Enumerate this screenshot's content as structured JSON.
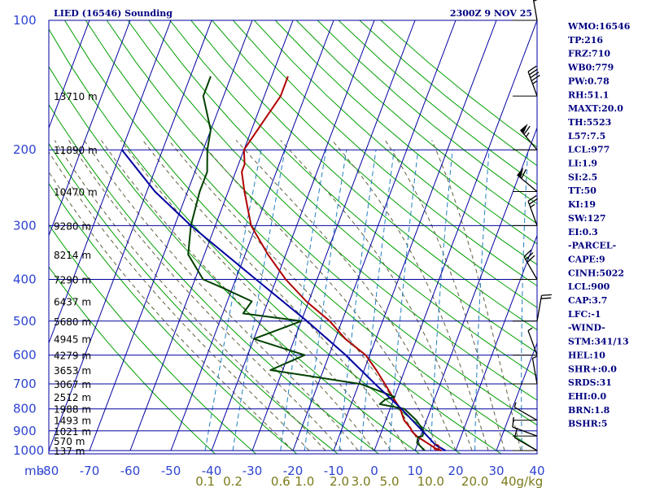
{
  "header": {
    "title": "LIED (16546) Sounding",
    "time": "2300Z  9 NOV 25"
  },
  "indices": [
    "WMO:16546",
    "TP:216",
    "FRZ:710",
    "WB0:779",
    "PW:0.78",
    "RH:51.1",
    "MAXT:20.0",
    "TH:5523",
    "L57:7.5",
    "LCL:977",
    "LI:1.9",
    "SI:2.5",
    "TT:50",
    "KI:19",
    "SW:127",
    "EI:0.3",
    "-PARCEL-",
    "CAPE:9",
    "CINH:5022",
    "LCL:900",
    "CAP:3.7",
    "LFC:-1",
    "-WIND-",
    "STM:341/13",
    "HEL:10",
    "SHR+:0.0",
    "SRDS:31",
    "EHI:0.0",
    "BRN:1.8",
    "BSHR:5"
  ],
  "chart_data": {
    "type": "line",
    "title": "LIED (16546) Sounding",
    "xlabel": "",
    "ylabel": "mb",
    "pressure_ticks": [
      100,
      200,
      300,
      400,
      500,
      600,
      700,
      800,
      900,
      1000
    ],
    "temperature_ticks": [
      "-80",
      "-70",
      "-60",
      "-50",
      "-40",
      "-30",
      "-20",
      "-10",
      "0",
      "10",
      "20",
      "30",
      "40"
    ],
    "mixing_ratio_ticks": [
      "0.1",
      "0.2",
      "0.6",
      "1.0",
      "2.0",
      "3.0",
      "5.0",
      "10.0",
      "20.0",
      "40g/kg"
    ],
    "height_labels": [
      {
        "p": 150,
        "text": "13710 m"
      },
      {
        "p": 200,
        "text": "11890 m"
      },
      {
        "p": 250,
        "text": "10470 m"
      },
      {
        "p": 300,
        "text": "9280 m"
      },
      {
        "p": 350,
        "text": "8214 m"
      },
      {
        "p": 400,
        "text": "7290 m"
      },
      {
        "p": 450,
        "text": "6437 m"
      },
      {
        "p": 500,
        "text": "5680 m"
      },
      {
        "p": 550,
        "text": "4945 m"
      },
      {
        "p": 600,
        "text": "4279 m"
      },
      {
        "p": 650,
        "text": "3653 m"
      },
      {
        "p": 700,
        "text": "3067 m"
      },
      {
        "p": 750,
        "text": "2512 m"
      },
      {
        "p": 800,
        "text": "1988 m"
      },
      {
        "p": 850,
        "text": "1493 m"
      },
      {
        "p": 900,
        "text": "1021 m"
      },
      {
        "p": 950,
        "text": "570 m"
      },
      {
        "p": 1000,
        "text": "137 m"
      }
    ],
    "series": [
      {
        "name": "temperature",
        "color": "#b00000",
        "points": [
          [
            1000,
            16.5
          ],
          [
            990,
            15.0
          ],
          [
            925,
            9.0
          ],
          [
            900,
            7.3
          ],
          [
            890,
            7.0
          ],
          [
            850,
            4.5
          ],
          [
            800,
            2.5
          ],
          [
            750,
            -0.5
          ],
          [
            700,
            -3.6
          ],
          [
            650,
            -7.0
          ],
          [
            600,
            -11.0
          ],
          [
            550,
            -17.5
          ],
          [
            500,
            -23.0
          ],
          [
            450,
            -30.6
          ],
          [
            400,
            -37.7
          ],
          [
            350,
            -44.4
          ],
          [
            300,
            -51.2
          ],
          [
            250,
            -56.0
          ],
          [
            225,
            -58.5
          ],
          [
            216,
            -58.5
          ],
          [
            200,
            -60.0
          ],
          [
            150,
            -56.0
          ],
          [
            135,
            -56.0
          ]
        ]
      },
      {
        "name": "dewpoint",
        "color": "#004000",
        "points": [
          [
            1000,
            12.4
          ],
          [
            960,
            9.8
          ],
          [
            930,
            9.5
          ],
          [
            925,
            10.5
          ],
          [
            900,
            10.3
          ],
          [
            850,
            7.5
          ],
          [
            800,
            3.5
          ],
          [
            780,
            -3.0
          ],
          [
            760,
            -2.0
          ],
          [
            750,
            0.0
          ],
          [
            700,
            -9.6
          ],
          [
            650,
            -33.0
          ],
          [
            600,
            -26.0
          ],
          [
            550,
            -40.0
          ],
          [
            500,
            -30.0
          ],
          [
            480,
            -45.0
          ],
          [
            450,
            -44.0
          ],
          [
            420,
            -52.0
          ],
          [
            400,
            -58.0
          ],
          [
            350,
            -64.0
          ],
          [
            300,
            -66.0
          ],
          [
            250,
            -67.0
          ],
          [
            225,
            -67.0
          ],
          [
            200,
            -69.0
          ],
          [
            180,
            -70.0
          ],
          [
            150,
            -75.0
          ],
          [
            135,
            -75.0
          ]
        ]
      },
      {
        "name": "parcel",
        "color": "#0000a0",
        "points": [
          [
            1000,
            17.5
          ],
          [
            970,
            14.5
          ],
          [
            900,
            10.0
          ],
          [
            850,
            6.5
          ],
          [
            800,
            2.8
          ],
          [
            700,
            -6.0
          ],
          [
            600,
            -15.9
          ],
          [
            500,
            -28.6
          ],
          [
            400,
            -45.0
          ],
          [
            300,
            -66.0
          ],
          [
            250,
            -78.0
          ],
          [
            200,
            -90.0
          ]
        ]
      }
    ],
    "wind_barbs": [
      {
        "p": 1000,
        "dir": 300,
        "kt": 10
      },
      {
        "p": 925,
        "dir": 290,
        "kt": 10
      },
      {
        "p": 850,
        "dir": 300,
        "kt": 5
      },
      {
        "p": 700,
        "dir": 350,
        "kt": 5
      },
      {
        "p": 600,
        "dir": 340,
        "kt": 5
      },
      {
        "p": 500,
        "dir": 10,
        "kt": 20
      },
      {
        "p": 400,
        "dir": 330,
        "kt": 30
      },
      {
        "p": 300,
        "dir": 340,
        "kt": 25
      },
      {
        "p": 250,
        "dir": 310,
        "kt": 60
      },
      {
        "p": 200,
        "dir": 320,
        "kt": 65
      },
      {
        "p": 150,
        "dir": 340,
        "kt": 45
      },
      {
        "p": 100,
        "dir": 350,
        "kt": 30
      }
    ],
    "colors": {
      "isobar": "#0000a0",
      "isotherm": "#0000a0",
      "dry_adiabat": "#00a000",
      "moist_adiabat": "#606040",
      "mixing_ratio": "#2080c0"
    }
  }
}
